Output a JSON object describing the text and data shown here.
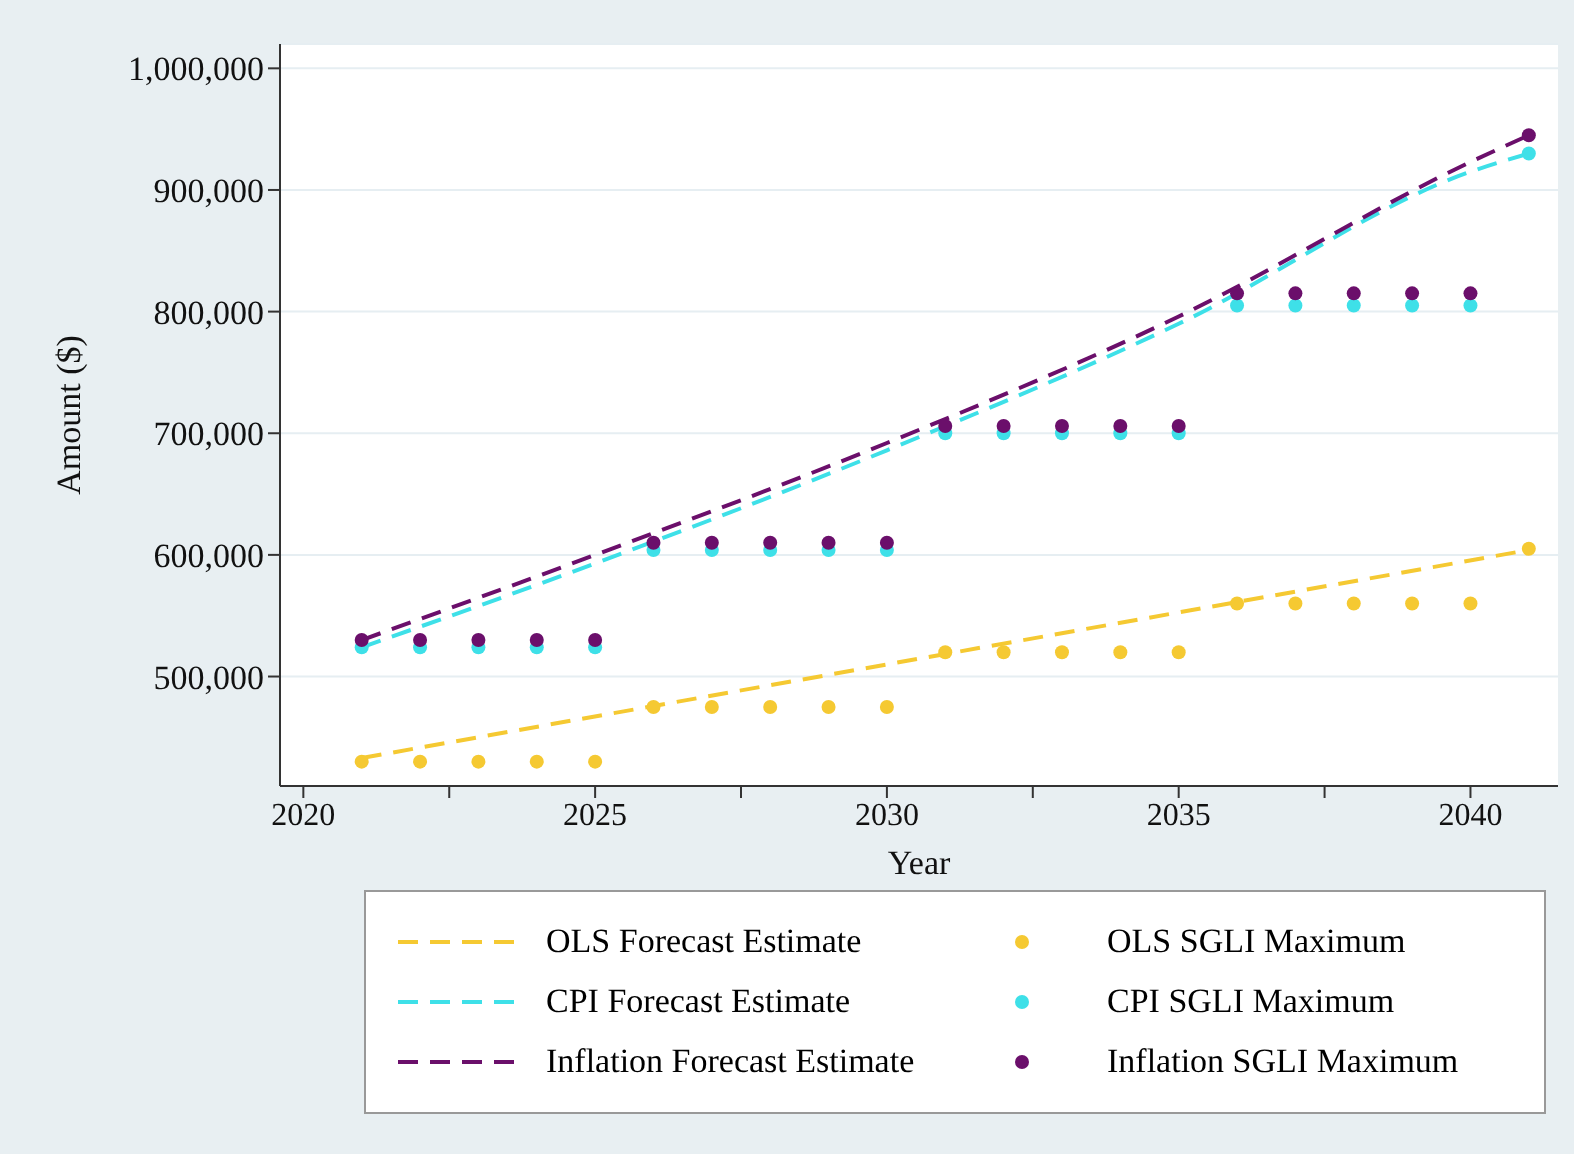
{
  "chart_data": {
    "type": "line",
    "xlabel": "Year",
    "ylabel": "Amount ($)",
    "xlim": [
      2019.6,
      2041.5
    ],
    "xticks": [
      2020,
      {
        "value": 2022.5,
        "label": null
      },
      2025,
      {
        "value": 2027.5,
        "label": null
      },
      2030,
      {
        "value": 2032.5,
        "label": null
      },
      2035,
      {
        "value": 2037.5,
        "label": null
      },
      2040
    ],
    "ylim": [
      410000,
      1020000
    ],
    "yticks": [
      {
        "value": 500000,
        "label": "500,000"
      },
      {
        "value": 600000,
        "label": "600,000"
      },
      {
        "value": 700000,
        "label": "700,000"
      },
      {
        "value": 800000,
        "label": "800,000"
      },
      {
        "value": 900000,
        "label": "900,000"
      },
      {
        "value": 1000000,
        "label": "1,000,000"
      }
    ],
    "grid": "y",
    "legend": "bottom",
    "line_style": "dashed",
    "series": [
      {
        "name": "OLS Forecast Estimate",
        "color": "#f5c932",
        "x": [
          2021,
          2041
        ],
        "values": [
          433000,
          604000
        ]
      },
      {
        "name": "CPI Forecast Estimate",
        "color": "#3ee0e8",
        "x": [
          2021,
          2025,
          2030,
          2035,
          2040,
          2041
        ],
        "values": [
          524000,
          593000,
          686000,
          790000,
          915000,
          930000
        ]
      },
      {
        "name": "Inflation Forecast Estimate",
        "color": "#6b0f6b",
        "x": [
          2021,
          2025,
          2030,
          2035,
          2040,
          2041
        ],
        "values": [
          530000,
          600000,
          692000,
          796000,
          923000,
          945000
        ]
      },
      {
        "name": "OLS SGLI Maximum",
        "type": "scatter",
        "color": "#f5c932",
        "x": [
          2021,
          2022,
          2023,
          2024,
          2025,
          2026,
          2027,
          2028,
          2029,
          2030,
          2031,
          2032,
          2033,
          2034,
          2035,
          2036,
          2037,
          2038,
          2039,
          2040,
          2041
        ],
        "values": [
          430000,
          430000,
          430000,
          430000,
          430000,
          475000,
          475000,
          475000,
          475000,
          475000,
          520000,
          520000,
          520000,
          520000,
          520000,
          560000,
          560000,
          560000,
          560000,
          560000,
          605000
        ]
      },
      {
        "name": "CPI SGLI Maximum",
        "type": "scatter",
        "color": "#3ee0e8",
        "x": [
          2021,
          2022,
          2023,
          2024,
          2025,
          2026,
          2027,
          2028,
          2029,
          2030,
          2031,
          2032,
          2033,
          2034,
          2035,
          2036,
          2037,
          2038,
          2039,
          2040,
          2041
        ],
        "values": [
          524000,
          524000,
          524000,
          524000,
          524000,
          604000,
          604000,
          604000,
          604000,
          604000,
          700000,
          700000,
          700000,
          700000,
          700000,
          805000,
          805000,
          805000,
          805000,
          805000,
          930000
        ]
      },
      {
        "name": "Inflation SGLI Maximum",
        "type": "scatter",
        "color": "#6b0f6b",
        "x": [
          2021,
          2022,
          2023,
          2024,
          2025,
          2026,
          2027,
          2028,
          2029,
          2030,
          2031,
          2032,
          2033,
          2034,
          2035,
          2036,
          2037,
          2038,
          2039,
          2040,
          2041
        ],
        "values": [
          530000,
          530000,
          530000,
          530000,
          530000,
          610000,
          610000,
          610000,
          610000,
          610000,
          706000,
          706000,
          706000,
          706000,
          706000,
          815000,
          815000,
          815000,
          815000,
          815000,
          945000
        ]
      }
    ]
  }
}
